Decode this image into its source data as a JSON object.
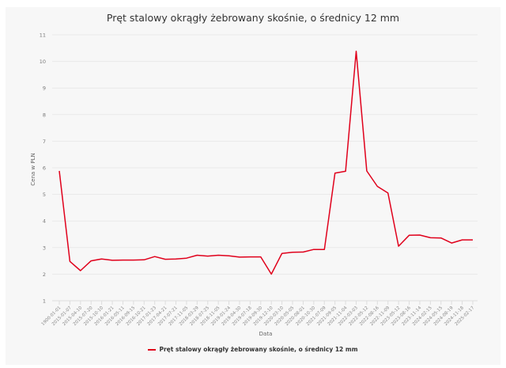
{
  "chart_data": {
    "type": "line",
    "title": "Pręt stalowy okrągły żebrowany skośnie, o średnicy 12 mm",
    "xlabel": "Data",
    "ylabel": "Cena w PLN",
    "ylim": [
      1,
      11
    ],
    "yticks": [
      1,
      2,
      3,
      4,
      5,
      6,
      7,
      8,
      9,
      10,
      11
    ],
    "grid": true,
    "legend_position": "bottom",
    "categories": [
      "1900-01-01",
      "2015-01-07",
      "2015-04-10",
      "2015-07-20",
      "2015-10-10",
      "2016-01-21",
      "2016-05-11",
      "2016-09-15",
      "2016-10-21",
      "2017-01-23",
      "2017-04-21",
      "2017-07-21",
      "2017-11-05",
      "2018-03-29",
      "2018-07-25",
      "2018-11-05",
      "2019-01-24",
      "2019-04-30",
      "2019-07-18",
      "2019-09-30",
      "2019-12-10",
      "2020-03-10",
      "2020-05-05",
      "2020-08-01",
      "2020-10-30",
      "2021-07-09",
      "2021-09-05",
      "2021-11-04",
      "2022-03-03",
      "2022-05-12",
      "2022-08-16",
      "2022-11-09",
      "2023-05-12",
      "2023-08-16",
      "2023-11-14",
      "2024-02-15",
      "2024-05-15",
      "2024-08-19",
      "2024-11-18",
      "2025-02-17"
    ],
    "series": [
      {
        "name": "Pręt stalowy okrągły żebrowany skośnie, o średnicy 12 mm",
        "color": "#e0001b",
        "values": [
          5.88,
          2.48,
          2.13,
          2.5,
          2.57,
          2.52,
          2.53,
          2.53,
          2.54,
          2.66,
          2.56,
          2.57,
          2.6,
          2.71,
          2.68,
          2.71,
          2.69,
          2.64,
          2.65,
          2.65,
          2.0,
          2.78,
          2.82,
          2.83,
          2.93,
          2.93,
          5.8,
          5.87,
          10.38,
          5.88,
          5.3,
          5.05,
          3.05,
          3.46,
          3.47,
          3.37,
          3.36,
          3.17,
          3.29,
          3.29
        ]
      }
    ]
  },
  "title": "Pręt stalowy okrągły żebrowany skośnie, o średnicy 12 mm",
  "legend": {
    "label": "Pręt stalowy okrągły żebrowany skośnie, o średnicy 12 mm"
  },
  "axes": {
    "xlabel": "Data",
    "ylabel": "Cena w PLN"
  }
}
